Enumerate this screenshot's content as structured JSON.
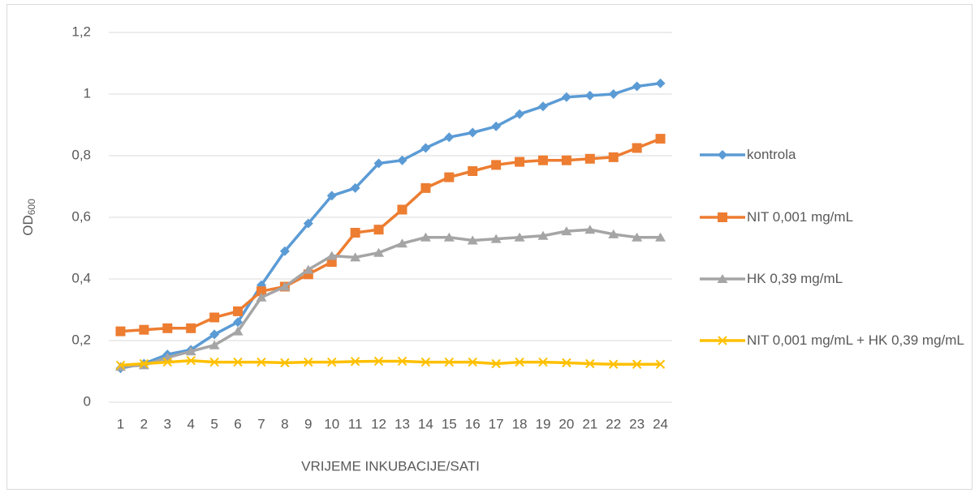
{
  "chart_data": {
    "type": "line",
    "x_label": "VRIJEME INKUBACIJE/SATI",
    "y_label": "OD",
    "y_label_sub": "600",
    "categories": [
      1,
      2,
      3,
      4,
      5,
      6,
      7,
      8,
      9,
      10,
      11,
      12,
      13,
      14,
      15,
      16,
      17,
      18,
      19,
      20,
      21,
      22,
      23,
      24
    ],
    "series": [
      {
        "name": "kontrola",
        "color": "#5B9BD5",
        "marker": "diamond",
        "values": [
          0.11,
          0.125,
          0.155,
          0.17,
          0.22,
          0.26,
          0.38,
          0.49,
          0.58,
          0.67,
          0.695,
          0.775,
          0.785,
          0.825,
          0.86,
          0.875,
          0.895,
          0.935,
          0.96,
          0.99,
          0.995,
          1.0,
          1.025,
          1.035
        ]
      },
      {
        "name": "NIT 0,001 mg/mL",
        "color": "#ED7D31",
        "marker": "square",
        "values": [
          0.23,
          0.235,
          0.24,
          0.24,
          0.275,
          0.295,
          0.36,
          0.375,
          0.415,
          0.455,
          0.55,
          0.56,
          0.625,
          0.695,
          0.73,
          0.75,
          0.77,
          0.78,
          0.785,
          0.785,
          0.79,
          0.795,
          0.825,
          0.855
        ]
      },
      {
        "name": "HK 0,39 mg/mL",
        "color": "#A5A5A5",
        "marker": "triangle",
        "values": [
          0.115,
          0.12,
          0.145,
          0.165,
          0.185,
          0.23,
          0.34,
          0.375,
          0.43,
          0.475,
          0.47,
          0.485,
          0.515,
          0.535,
          0.535,
          0.525,
          0.53,
          0.535,
          0.54,
          0.555,
          0.56,
          0.545,
          0.535,
          0.535
        ]
      },
      {
        "name": "NIT 0,001 mg/mL + HK 0,39 mg/mL",
        "color": "#FFC000",
        "marker": "x",
        "values": [
          0.12,
          0.125,
          0.13,
          0.135,
          0.13,
          0.13,
          0.13,
          0.128,
          0.13,
          0.13,
          0.132,
          0.133,
          0.133,
          0.13,
          0.13,
          0.13,
          0.125,
          0.13,
          0.13,
          0.128,
          0.125,
          0.123,
          0.123,
          0.123
        ]
      }
    ],
    "ylim": [
      0,
      1.2
    ],
    "yticks": [
      0,
      {
        "value": 0.2,
        "label": "0,2"
      },
      {
        "value": 0.4,
        "label": "0,4"
      },
      {
        "value": 0.6,
        "label": "0,6"
      },
      {
        "value": 0.8,
        "label": "0,8"
      },
      1,
      {
        "value": 1.2,
        "label": "1,2"
      }
    ],
    "grid": true,
    "legend": "right"
  }
}
